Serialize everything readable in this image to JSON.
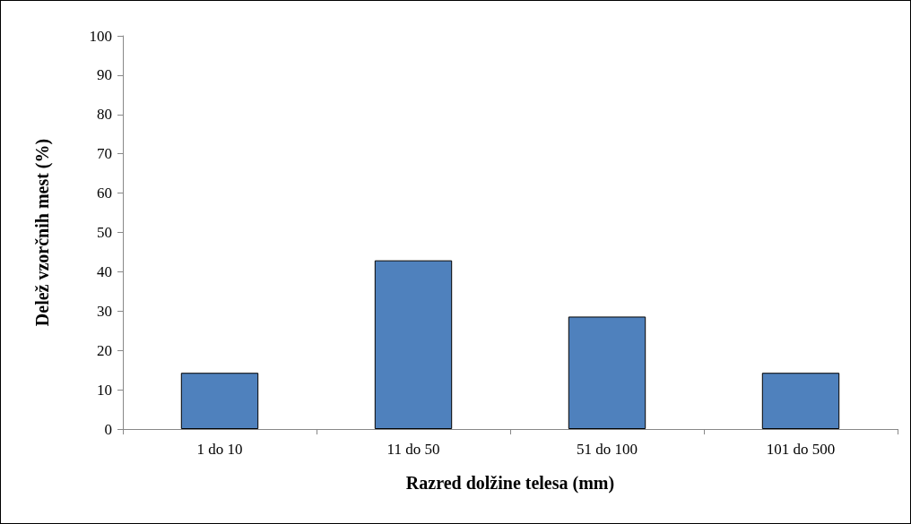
{
  "chart_data": {
    "type": "bar",
    "xlabel": "Razred dolžine telesa (mm)",
    "ylabel": "Delež vzorčnih mest (%)",
    "categories": [
      "1 do 10",
      "11 do 50",
      "51 do 100",
      "101 do 500"
    ],
    "values": [
      14.3,
      42.9,
      28.6,
      14.3
    ],
    "color": "#4f81bd",
    "ylim": [
      0,
      100
    ],
    "yticks": [
      0,
      10,
      20,
      30,
      40,
      50,
      60,
      70,
      80,
      90,
      100
    ],
    "grid": false
  }
}
